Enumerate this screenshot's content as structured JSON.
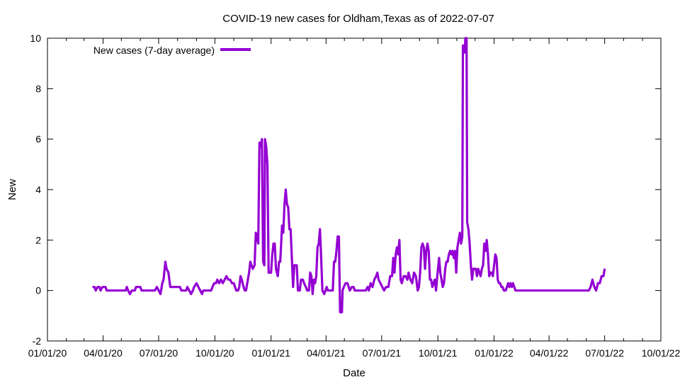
{
  "chart_data": {
    "type": "line",
    "title": "COVID-19 new cases for Oldham,Texas as of 2022-07-07",
    "xlabel": "Date",
    "ylabel": "New",
    "xlim": [
      "2020-01-01",
      "2022-10-01"
    ],
    "ylim": [
      -2,
      10
    ],
    "x_tick_labels": [
      "01/01/20",
      "04/01/20",
      "07/01/20",
      "10/01/20",
      "01/01/21",
      "04/01/21",
      "07/01/21",
      "10/01/21",
      "01/01/22",
      "04/01/22",
      "07/01/22",
      "10/01/22"
    ],
    "y_tick_labels": [
      "-2",
      "0",
      "2",
      "4",
      "6",
      "8",
      "10"
    ],
    "legend_position": "top-left",
    "grid": false,
    "series": [
      {
        "name": "New cases (7-day average)",
        "color": "#9400d3",
        "points": [
          [
            "2020-03-15",
            0.14
          ],
          [
            "2020-03-18",
            0.14
          ],
          [
            "2020-03-20",
            0.0
          ],
          [
            "2020-03-23",
            0.14
          ],
          [
            "2020-03-26",
            0.14
          ],
          [
            "2020-03-28",
            0.0
          ],
          [
            "2020-03-31",
            0.14
          ],
          [
            "2020-04-05",
            0.14
          ],
          [
            "2020-04-07",
            0.0
          ],
          [
            "2020-05-08",
            0.0
          ],
          [
            "2020-05-10",
            0.14
          ],
          [
            "2020-05-12",
            0.0
          ],
          [
            "2020-05-15",
            -0.14
          ],
          [
            "2020-05-18",
            0.0
          ],
          [
            "2020-05-23",
            0.0
          ],
          [
            "2020-05-25",
            0.14
          ],
          [
            "2020-06-01",
            0.14
          ],
          [
            "2020-06-03",
            0.0
          ],
          [
            "2020-06-25",
            0.0
          ],
          [
            "2020-06-28",
            0.14
          ],
          [
            "2020-07-01",
            0.0
          ],
          [
            "2020-07-04",
            -0.14
          ],
          [
            "2020-07-07",
            0.29
          ],
          [
            "2020-07-09",
            0.43
          ],
          [
            "2020-07-12",
            1.14
          ],
          [
            "2020-07-14",
            0.86
          ],
          [
            "2020-07-17",
            0.71
          ],
          [
            "2020-07-20",
            0.14
          ],
          [
            "2020-08-05",
            0.14
          ],
          [
            "2020-08-07",
            0.0
          ],
          [
            "2020-08-15",
            0.0
          ],
          [
            "2020-08-17",
            0.14
          ],
          [
            "2020-08-20",
            0.0
          ],
          [
            "2020-08-23",
            -0.14
          ],
          [
            "2020-08-26",
            0.0
          ],
          [
            "2020-08-28",
            0.14
          ],
          [
            "2020-09-01",
            0.29
          ],
          [
            "2020-09-04",
            0.14
          ],
          [
            "2020-09-07",
            0.0
          ],
          [
            "2020-09-10",
            -0.14
          ],
          [
            "2020-09-12",
            0.0
          ],
          [
            "2020-09-25",
            0.0
          ],
          [
            "2020-09-27",
            0.14
          ],
          [
            "2020-09-30",
            0.29
          ],
          [
            "2020-10-03",
            0.29
          ],
          [
            "2020-10-05",
            0.43
          ],
          [
            "2020-10-08",
            0.29
          ],
          [
            "2020-10-11",
            0.43
          ],
          [
            "2020-10-14",
            0.29
          ],
          [
            "2020-10-17",
            0.43
          ],
          [
            "2020-10-20",
            0.57
          ],
          [
            "2020-10-23",
            0.43
          ],
          [
            "2020-10-26",
            0.43
          ],
          [
            "2020-10-29",
            0.29
          ],
          [
            "2020-11-01",
            0.29
          ],
          [
            "2020-11-03",
            0.14
          ],
          [
            "2020-11-05",
            0.0
          ],
          [
            "2020-11-08",
            0.0
          ],
          [
            "2020-11-10",
            0.14
          ],
          [
            "2020-11-12",
            0.57
          ],
          [
            "2020-11-14",
            0.43
          ],
          [
            "2020-11-17",
            0.14
          ],
          [
            "2020-11-19",
            0.0
          ],
          [
            "2020-11-21",
            0.0
          ],
          [
            "2020-11-24",
            0.43
          ],
          [
            "2020-11-26",
            0.71
          ],
          [
            "2020-11-28",
            1.14
          ],
          [
            "2020-11-30",
            1.0
          ],
          [
            "2020-12-02",
            0.86
          ],
          [
            "2020-12-05",
            1.0
          ],
          [
            "2020-12-07",
            2.29
          ],
          [
            "2020-12-09",
            2.14
          ],
          [
            "2020-12-11",
            1.86
          ],
          [
            "2020-12-13",
            5.86
          ],
          [
            "2020-12-15",
            5.71
          ],
          [
            "2020-12-17",
            6.0
          ],
          [
            "2020-12-19",
            1.14
          ],
          [
            "2020-12-21",
            1.0
          ],
          [
            "2020-12-22",
            6.0
          ],
          [
            "2020-12-24",
            5.71
          ],
          [
            "2020-12-26",
            5.0
          ],
          [
            "2020-12-28",
            0.71
          ],
          [
            "2021-01-01",
            0.71
          ],
          [
            "2021-01-03",
            1.43
          ],
          [
            "2021-01-05",
            1.86
          ],
          [
            "2021-01-07",
            1.86
          ],
          [
            "2021-01-09",
            0.86
          ],
          [
            "2021-01-12",
            0.57
          ],
          [
            "2021-01-14",
            1.14
          ],
          [
            "2021-01-16",
            1.14
          ],
          [
            "2021-01-19",
            2.57
          ],
          [
            "2021-01-21",
            2.29
          ],
          [
            "2021-01-23",
            3.43
          ],
          [
            "2021-01-25",
            4.0
          ],
          [
            "2021-01-27",
            3.43
          ],
          [
            "2021-01-29",
            3.29
          ],
          [
            "2021-01-31",
            2.43
          ],
          [
            "2021-02-02",
            2.43
          ],
          [
            "2021-02-04",
            1.29
          ],
          [
            "2021-02-06",
            0.14
          ],
          [
            "2021-02-08",
            1.0
          ],
          [
            "2021-02-10",
            1.0
          ],
          [
            "2021-02-12",
            1.0
          ],
          [
            "2021-02-14",
            0.0
          ],
          [
            "2021-02-17",
            0.0
          ],
          [
            "2021-02-19",
            0.43
          ],
          [
            "2021-02-22",
            0.43
          ],
          [
            "2021-02-24",
            0.29
          ],
          [
            "2021-02-27",
            0.14
          ],
          [
            "2021-03-01",
            0.0
          ],
          [
            "2021-03-04",
            0.0
          ],
          [
            "2021-03-06",
            0.71
          ],
          [
            "2021-03-08",
            0.57
          ],
          [
            "2021-03-10",
            -0.14
          ],
          [
            "2021-03-12",
            0.43
          ],
          [
            "2021-03-14",
            0.29
          ],
          [
            "2021-03-16",
            0.57
          ],
          [
            "2021-03-18",
            1.71
          ],
          [
            "2021-03-20",
            1.86
          ],
          [
            "2021-03-22",
            2.43
          ],
          [
            "2021-03-24",
            1.29
          ],
          [
            "2021-03-26",
            0.0
          ],
          [
            "2021-03-29",
            -0.14
          ],
          [
            "2021-03-31",
            0.0
          ],
          [
            "2021-04-02",
            0.14
          ],
          [
            "2021-04-04",
            0.0
          ],
          [
            "2021-04-12",
            0.0
          ],
          [
            "2021-04-14",
            1.14
          ],
          [
            "2021-04-16",
            1.14
          ],
          [
            "2021-04-18",
            1.57
          ],
          [
            "2021-04-20",
            2.14
          ],
          [
            "2021-04-22",
            2.14
          ],
          [
            "2021-04-23",
            0.57
          ],
          [
            "2021-04-24",
            -0.86
          ],
          [
            "2021-04-27",
            -0.86
          ],
          [
            "2021-04-28",
            0.0
          ],
          [
            "2021-04-30",
            0.14
          ],
          [
            "2021-05-03",
            0.29
          ],
          [
            "2021-05-06",
            0.29
          ],
          [
            "2021-05-08",
            0.14
          ],
          [
            "2021-05-10",
            0.0
          ],
          [
            "2021-05-13",
            0.14
          ],
          [
            "2021-05-16",
            0.14
          ],
          [
            "2021-05-18",
            0.0
          ],
          [
            "2021-06-05",
            0.0
          ],
          [
            "2021-06-08",
            0.14
          ],
          [
            "2021-06-10",
            0.0
          ],
          [
            "2021-06-13",
            0.29
          ],
          [
            "2021-06-16",
            0.14
          ],
          [
            "2021-06-19",
            0.43
          ],
          [
            "2021-06-22",
            0.57
          ],
          [
            "2021-06-24",
            0.71
          ],
          [
            "2021-06-26",
            0.43
          ],
          [
            "2021-06-29",
            0.29
          ],
          [
            "2021-07-02",
            0.14
          ],
          [
            "2021-07-05",
            0.0
          ],
          [
            "2021-07-08",
            0.14
          ],
          [
            "2021-07-12",
            0.14
          ],
          [
            "2021-07-15",
            0.57
          ],
          [
            "2021-07-18",
            0.57
          ],
          [
            "2021-07-20",
            1.29
          ],
          [
            "2021-07-22",
            0.71
          ],
          [
            "2021-07-24",
            1.43
          ],
          [
            "2021-07-26",
            1.71
          ],
          [
            "2021-07-28",
            1.43
          ],
          [
            "2021-07-30",
            2.0
          ],
          [
            "2021-08-01",
            0.43
          ],
          [
            "2021-08-03",
            0.29
          ],
          [
            "2021-08-06",
            0.57
          ],
          [
            "2021-08-09",
            0.57
          ],
          [
            "2021-08-12",
            0.43
          ],
          [
            "2021-08-14",
            0.71
          ],
          [
            "2021-08-17",
            0.43
          ],
          [
            "2021-08-20",
            0.29
          ],
          [
            "2021-08-23",
            0.71
          ],
          [
            "2021-08-26",
            0.57
          ],
          [
            "2021-08-29",
            0.0
          ],
          [
            "2021-08-31",
            0.14
          ],
          [
            "2021-09-02",
            0.71
          ],
          [
            "2021-09-04",
            1.71
          ],
          [
            "2021-09-06",
            1.86
          ],
          [
            "2021-09-08",
            1.71
          ],
          [
            "2021-09-10",
            0.86
          ],
          [
            "2021-09-12",
            1.57
          ],
          [
            "2021-09-14",
            1.86
          ],
          [
            "2021-09-16",
            1.57
          ],
          [
            "2021-09-18",
            0.43
          ],
          [
            "2021-09-20",
            0.43
          ],
          [
            "2021-09-22",
            0.14
          ],
          [
            "2021-09-24",
            0.29
          ],
          [
            "2021-09-26",
            0.43
          ],
          [
            "2021-09-28",
            0.0
          ],
          [
            "2021-09-30",
            0.57
          ],
          [
            "2021-10-03",
            1.29
          ],
          [
            "2021-10-05",
            0.71
          ],
          [
            "2021-10-07",
            0.43
          ],
          [
            "2021-10-09",
            0.14
          ],
          [
            "2021-10-11",
            0.29
          ],
          [
            "2021-10-13",
            0.86
          ],
          [
            "2021-10-15",
            1.14
          ],
          [
            "2021-10-17",
            1.14
          ],
          [
            "2021-10-19",
            1.43
          ],
          [
            "2021-10-21",
            1.57
          ],
          [
            "2021-10-23",
            1.43
          ],
          [
            "2021-10-25",
            1.57
          ],
          [
            "2021-10-27",
            1.29
          ],
          [
            "2021-10-29",
            1.57
          ],
          [
            "2021-10-31",
            0.71
          ],
          [
            "2021-11-02",
            1.71
          ],
          [
            "2021-11-04",
            2.0
          ],
          [
            "2021-11-06",
            2.29
          ],
          [
            "2021-11-08",
            1.86
          ],
          [
            "2021-11-10",
            2.14
          ],
          [
            "2021-11-11",
            9.71
          ],
          [
            "2021-11-13",
            9.71
          ],
          [
            "2021-11-14",
            9.43
          ],
          [
            "2021-11-15",
            10.0
          ],
          [
            "2021-11-17",
            10.0
          ],
          [
            "2021-11-18",
            2.71
          ],
          [
            "2021-11-20",
            2.43
          ],
          [
            "2021-11-22",
            1.86
          ],
          [
            "2021-11-24",
            1.0
          ],
          [
            "2021-11-26",
            0.43
          ],
          [
            "2021-11-28",
            0.86
          ],
          [
            "2021-11-30",
            0.86
          ],
          [
            "2021-12-02",
            0.86
          ],
          [
            "2021-12-04",
            0.57
          ],
          [
            "2021-12-06",
            0.86
          ],
          [
            "2021-12-08",
            0.71
          ],
          [
            "2021-12-10",
            0.57
          ],
          [
            "2021-12-12",
            0.86
          ],
          [
            "2021-12-14",
            1.0
          ],
          [
            "2021-12-16",
            1.86
          ],
          [
            "2021-12-18",
            1.57
          ],
          [
            "2021-12-20",
            2.0
          ],
          [
            "2021-12-22",
            1.43
          ],
          [
            "2021-12-24",
            0.57
          ],
          [
            "2021-12-26",
            0.71
          ],
          [
            "2021-12-28",
            0.71
          ],
          [
            "2021-12-30",
            0.57
          ],
          [
            "2022-01-01",
            1.0
          ],
          [
            "2022-01-03",
            1.43
          ],
          [
            "2022-01-05",
            1.29
          ],
          [
            "2022-01-07",
            0.43
          ],
          [
            "2022-01-09",
            0.29
          ],
          [
            "2022-01-11",
            0.29
          ],
          [
            "2022-01-13",
            0.14
          ],
          [
            "2022-01-15",
            0.14
          ],
          [
            "2022-01-17",
            0.0
          ],
          [
            "2022-01-20",
            0.0
          ],
          [
            "2022-01-22",
            0.14
          ],
          [
            "2022-01-24",
            0.29
          ],
          [
            "2022-01-26",
            0.14
          ],
          [
            "2022-01-28",
            0.29
          ],
          [
            "2022-01-30",
            0.14
          ],
          [
            "2022-02-01",
            0.29
          ],
          [
            "2022-02-03",
            0.14
          ],
          [
            "2022-02-05",
            0.0
          ],
          [
            "2022-06-05",
            0.0
          ],
          [
            "2022-06-08",
            0.14
          ],
          [
            "2022-06-11",
            0.43
          ],
          [
            "2022-06-14",
            0.14
          ],
          [
            "2022-06-17",
            0.0
          ],
          [
            "2022-06-20",
            0.29
          ],
          [
            "2022-06-23",
            0.29
          ],
          [
            "2022-06-26",
            0.57
          ],
          [
            "2022-06-29",
            0.57
          ],
          [
            "2022-07-01",
            0.86
          ]
        ]
      }
    ]
  }
}
